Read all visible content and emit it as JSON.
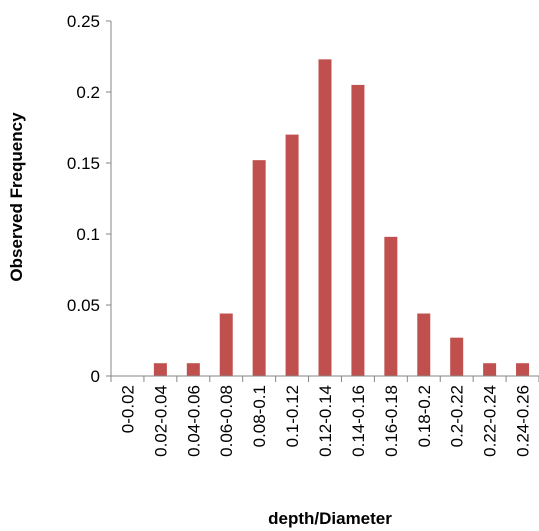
{
  "chart_data": {
    "type": "bar",
    "title": "",
    "xlabel": "depth/Diameter",
    "ylabel": "Observed Frequency",
    "categories": [
      "0-0.02",
      "0.02-0.04",
      "0.04-0.06",
      "0.06-0.08",
      "0.08-0.1",
      "0.1-0.12",
      "0.12-0.14",
      "0.14-0.16",
      "0.16-0.18",
      "0.18-0.2",
      "0.2-0.22",
      "0.22-0.24",
      "0.24-0.26"
    ],
    "values": [
      0,
      0.009,
      0.009,
      0.044,
      0.152,
      0.17,
      0.223,
      0.205,
      0.098,
      0.044,
      0.027,
      0.009,
      0.009
    ],
    "ylim": [
      0,
      0.25
    ],
    "yticks": [
      0,
      0.05,
      0.1,
      0.15,
      0.2,
      0.25
    ],
    "ytick_labels": [
      "0",
      "0.05",
      "0.1",
      "0.15",
      "0.2",
      "0.25"
    ],
    "grid": false,
    "legend": "none",
    "bar_color": "#c0504d",
    "axis_color": "#868686"
  }
}
